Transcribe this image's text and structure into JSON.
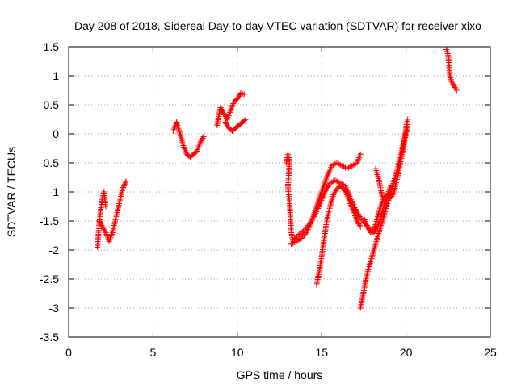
{
  "chart_data": {
    "type": "scatter",
    "title": "Day 208 of 2018, Sidereal Day-to-day VTEC variation (SDTVAR) for receiver xixo",
    "xlabel": "GPS time / hours",
    "ylabel": "SDTVAR / TECUs",
    "xlim": [
      0,
      25
    ],
    "ylim": [
      -3.5,
      1.5
    ],
    "x_ticks": [
      0,
      5,
      10,
      15,
      20,
      25
    ],
    "y_ticks": [
      -3.5,
      -3,
      -2.5,
      -2,
      -1.5,
      -1,
      -0.5,
      0,
      0.5,
      1,
      1.5
    ],
    "x_tick_labels": [
      "0",
      "5",
      "10",
      "15",
      "20",
      "25"
    ],
    "y_tick_labels": [
      "-3.5",
      "-3",
      "-2.5",
      "-2",
      "-1.5",
      "-1",
      "-0.5",
      "0",
      "0.5",
      "1",
      "1.5"
    ],
    "grid": true,
    "marker": "plus",
    "color": "#ff0000",
    "series": [
      {
        "points": [
          [
            1.7,
            -1.95
          ],
          [
            1.8,
            -1.6
          ],
          [
            1.9,
            -1.3
          ],
          [
            2.0,
            -1.1
          ],
          [
            2.1,
            -1.0
          ],
          [
            2.2,
            -1.25
          ]
        ]
      },
      {
        "points": [
          [
            1.8,
            -1.5
          ],
          [
            2.0,
            -1.6
          ],
          [
            2.2,
            -1.7
          ],
          [
            2.4,
            -1.85
          ],
          [
            2.6,
            -1.7
          ],
          [
            2.8,
            -1.45
          ],
          [
            3.0,
            -1.2
          ],
          [
            3.2,
            -0.95
          ],
          [
            3.4,
            -0.82
          ]
        ]
      },
      {
        "points": [
          [
            6.2,
            0.05
          ],
          [
            6.4,
            0.2
          ],
          [
            6.6,
            0.0
          ],
          [
            6.8,
            -0.2
          ],
          [
            7.0,
            -0.35
          ],
          [
            7.2,
            -0.4
          ],
          [
            7.4,
            -0.35
          ],
          [
            7.6,
            -0.3
          ],
          [
            7.8,
            -0.15
          ],
          [
            8.0,
            -0.05
          ]
        ]
      },
      {
        "points": [
          [
            8.8,
            0.15
          ],
          [
            8.9,
            0.3
          ],
          [
            9.0,
            0.45
          ],
          [
            9.2,
            0.35
          ],
          [
            9.4,
            0.25
          ],
          [
            9.6,
            0.4
          ],
          [
            9.8,
            0.55
          ],
          [
            10.0,
            0.6
          ],
          [
            10.2,
            0.7
          ],
          [
            10.4,
            0.68
          ]
        ]
      },
      {
        "points": [
          [
            9.3,
            0.2
          ],
          [
            9.5,
            0.1
          ],
          [
            9.7,
            0.05
          ],
          [
            9.9,
            0.1
          ],
          [
            10.1,
            0.15
          ],
          [
            10.3,
            0.2
          ],
          [
            10.5,
            0.25
          ]
        ]
      },
      {
        "points": [
          [
            12.9,
            -0.5
          ],
          [
            13.0,
            -0.35
          ],
          [
            13.1,
            -0.5
          ],
          [
            13.0,
            -0.9
          ],
          [
            13.1,
            -1.2
          ],
          [
            13.2,
            -1.7
          ],
          [
            13.3,
            -1.85
          ],
          [
            13.6,
            -1.75
          ],
          [
            14.0,
            -1.65
          ],
          [
            14.3,
            -1.55
          ],
          [
            14.6,
            -1.4
          ],
          [
            14.9,
            -1.2
          ],
          [
            15.2,
            -1.0
          ],
          [
            15.5,
            -0.85
          ],
          [
            15.8,
            -0.8
          ],
          [
            16.1,
            -0.85
          ],
          [
            16.4,
            -0.9
          ],
          [
            16.7,
            -1.1
          ],
          [
            17.0,
            -1.3
          ],
          [
            17.3,
            -1.45
          ],
          [
            17.6,
            -1.55
          ],
          [
            17.9,
            -1.65
          ],
          [
            18.1,
            -1.7
          ],
          [
            18.3,
            -1.6
          ],
          [
            18.5,
            -1.45
          ],
          [
            18.7,
            -1.25
          ],
          [
            18.9,
            -1.05
          ],
          [
            19.1,
            -0.9
          ]
        ]
      },
      {
        "points": [
          [
            13.2,
            -1.9
          ],
          [
            13.5,
            -1.85
          ],
          [
            13.8,
            -1.8
          ],
          [
            14.1,
            -1.7
          ],
          [
            14.4,
            -1.5
          ],
          [
            14.7,
            -1.25
          ],
          [
            15.0,
            -1.0
          ],
          [
            15.3,
            -0.75
          ],
          [
            15.6,
            -0.55
          ],
          [
            15.9,
            -0.5
          ],
          [
            16.2,
            -0.55
          ],
          [
            16.5,
            -0.6
          ],
          [
            16.8,
            -0.55
          ],
          [
            17.1,
            -0.5
          ],
          [
            17.3,
            -0.35
          ]
        ]
      },
      {
        "points": [
          [
            14.7,
            -2.6
          ],
          [
            14.9,
            -2.3
          ],
          [
            15.1,
            -1.9
          ],
          [
            15.3,
            -1.5
          ],
          [
            15.5,
            -1.25
          ],
          [
            15.7,
            -1.05
          ],
          [
            15.9,
            -0.95
          ],
          [
            16.1,
            -0.9
          ],
          [
            16.3,
            -0.95
          ],
          [
            16.5,
            -1.05
          ],
          [
            16.7,
            -1.2
          ],
          [
            16.9,
            -1.35
          ],
          [
            17.1,
            -1.5
          ],
          [
            17.3,
            -1.6
          ]
        ]
      },
      {
        "points": [
          [
            17.3,
            -3.0
          ],
          [
            17.5,
            -2.7
          ],
          [
            17.7,
            -2.4
          ],
          [
            17.9,
            -2.2
          ],
          [
            18.1,
            -2.0
          ],
          [
            18.3,
            -1.8
          ],
          [
            18.5,
            -1.6
          ],
          [
            18.7,
            -1.4
          ],
          [
            18.9,
            -1.2
          ],
          [
            19.1,
            -1.0
          ],
          [
            19.3,
            -0.8
          ],
          [
            19.5,
            -0.6
          ],
          [
            19.7,
            -0.35
          ],
          [
            19.9,
            -0.1
          ],
          [
            20.0,
            0.1
          ],
          [
            20.1,
            0.25
          ]
        ]
      },
      {
        "points": [
          [
            17.5,
            -1.45
          ],
          [
            17.7,
            -1.6
          ],
          [
            17.9,
            -1.7
          ],
          [
            18.1,
            -1.65
          ],
          [
            18.3,
            -1.45
          ],
          [
            18.5,
            -1.25
          ],
          [
            18.7,
            -1.1
          ],
          [
            18.9,
            -1.05
          ],
          [
            19.1,
            -1.1
          ],
          [
            19.3,
            -1.0
          ],
          [
            19.5,
            -0.75
          ],
          [
            19.7,
            -0.45
          ],
          [
            19.9,
            -0.15
          ],
          [
            20.0,
            0.0
          ],
          [
            20.1,
            0.1
          ]
        ]
      },
      {
        "points": [
          [
            18.2,
            -0.6
          ],
          [
            18.3,
            -0.7
          ],
          [
            18.4,
            -0.8
          ],
          [
            18.5,
            -0.95
          ],
          [
            18.6,
            -1.1
          ]
        ]
      },
      {
        "points": [
          [
            22.4,
            1.45
          ],
          [
            22.5,
            1.35
          ],
          [
            22.55,
            1.2
          ],
          [
            22.6,
            1.0
          ],
          [
            22.7,
            0.9
          ],
          [
            22.8,
            0.85
          ],
          [
            22.9,
            0.8
          ],
          [
            23.0,
            0.75
          ]
        ]
      }
    ]
  }
}
